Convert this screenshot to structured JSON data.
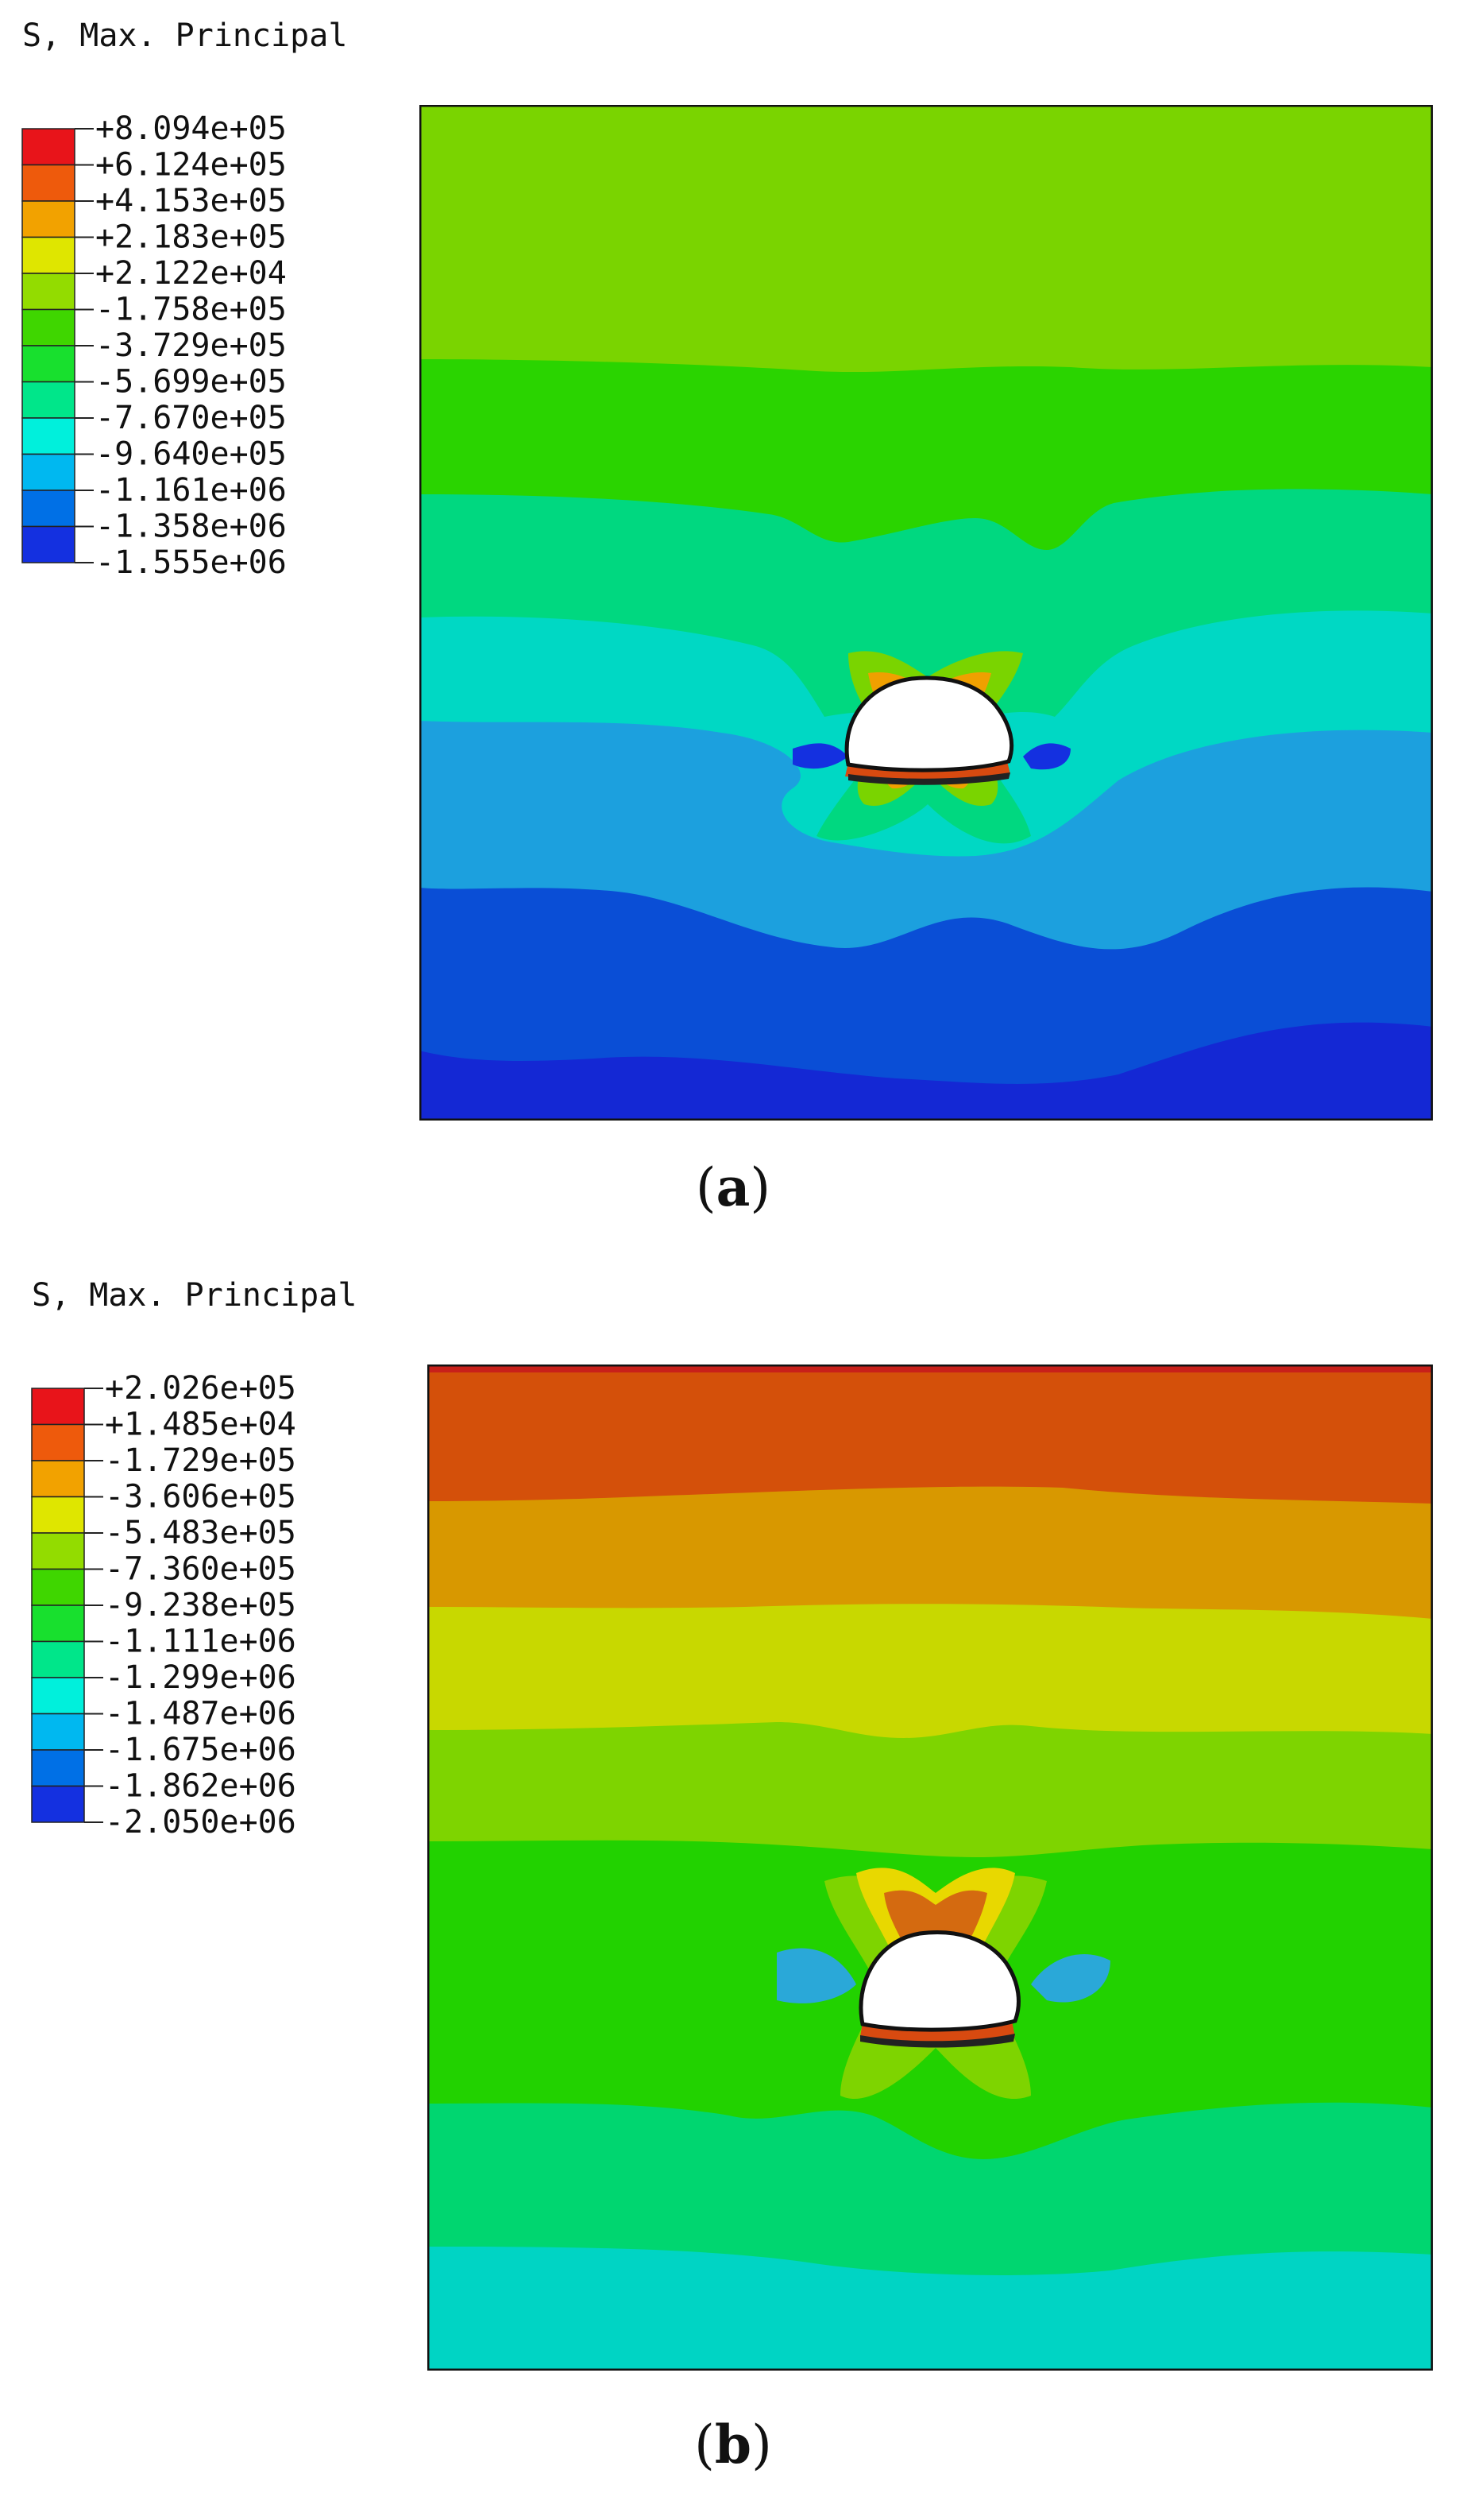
{
  "panels": [
    {
      "id": "a",
      "legend_title": "S, Max. Principal",
      "legend_values": [
        "+8.094e+05",
        "+6.124e+05",
        "+4.153e+05",
        "+2.183e+05",
        "+2.122e+04",
        "-1.758e+05",
        "-3.729e+05",
        "-5.699e+05",
        "-7.670e+05",
        "-9.640e+05",
        "-1.161e+06",
        "-1.358e+06",
        "-1.555e+06"
      ],
      "legend_colors": [
        "#e8141a",
        "#ee5a0c",
        "#f2a200",
        "#dfe600",
        "#93dc00",
        "#3fd600",
        "#18e02e",
        "#00e68a",
        "#00f0dc",
        "#00b8f0",
        "#0070e6",
        "#1430e0"
      ],
      "caption_letter": "a"
    },
    {
      "id": "b",
      "legend_title": "S, Max. Principal",
      "legend_values": [
        "+2.026e+05",
        "+1.485e+04",
        "-1.729e+05",
        "-3.606e+05",
        "-5.483e+05",
        "-7.360e+05",
        "-9.238e+05",
        "-1.111e+06",
        "-1.299e+06",
        "-1.487e+06",
        "-1.675e+06",
        "-1.862e+06",
        "-2.050e+06"
      ],
      "legend_colors": [
        "#e8141a",
        "#ee5a0c",
        "#f2a200",
        "#dfe600",
        "#93dc00",
        "#3fd600",
        "#18e02e",
        "#00e68a",
        "#00f0dc",
        "#00b8f0",
        "#0070e6",
        "#1430e0"
      ],
      "caption_letter": "b"
    }
  ]
}
